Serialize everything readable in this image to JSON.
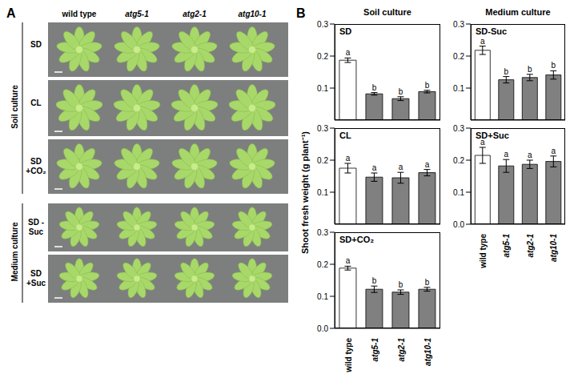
{
  "panel_a": {
    "label": "A",
    "columns": [
      "wild type",
      "atg5-1",
      "atg2-1",
      "atg10-1"
    ],
    "groups": [
      {
        "name": "Soil culture",
        "rows": [
          "SD",
          "CL",
          "SD +CO₂"
        ]
      },
      {
        "name": "Medium culture",
        "rows": [
          "SD -Suc",
          "SD +Suc"
        ]
      }
    ]
  },
  "panel_b": {
    "label": "B",
    "y_label": "Shoot fresh weight (g plant⁻¹)",
    "column_titles": [
      "Soil culture",
      "Medium culture"
    ]
  },
  "chart_data": [
    {
      "type": "bar",
      "title": "SD",
      "categories": [
        "wild type",
        "atg5-1",
        "atg2-1",
        "atg10-1"
      ],
      "values": [
        0.187,
        0.082,
        0.067,
        0.089
      ],
      "errors": [
        0.007,
        0.004,
        0.006,
        0.004
      ],
      "letters": [
        "a",
        "b",
        "b",
        "b"
      ],
      "colors": [
        "#ffffff",
        "#808080",
        "#808080",
        "#808080"
      ],
      "ylim": [
        0,
        0.3
      ],
      "yticks": [
        {
          "value": 0,
          "label": "0.0"
        },
        0.1,
        0.2,
        0.3
      ],
      "tick_labels": "y"
    },
    {
      "type": "bar",
      "title": "CL",
      "categories": [
        "wild type",
        "atg5-1",
        "atg2-1",
        "atg10-1"
      ],
      "values": [
        0.175,
        0.147,
        0.145,
        0.161
      ],
      "errors": [
        0.015,
        0.013,
        0.017,
        0.01
      ],
      "letters": [
        "a",
        "a",
        "a",
        "a"
      ],
      "colors": [
        "#ffffff",
        "#808080",
        "#808080",
        "#808080"
      ],
      "ylim": [
        0,
        0.3
      ],
      "yticks": [
        {
          "value": 0,
          "label": "0.0"
        },
        0.1,
        0.2,
        0.3
      ],
      "tick_labels": "y"
    },
    {
      "type": "bar",
      "title": "SD+CO₂",
      "categories": [
        "wild type",
        "atg5-1",
        "atg2-1",
        "atg10-1"
      ],
      "values": [
        0.188,
        0.122,
        0.113,
        0.122
      ],
      "errors": [
        0.006,
        0.01,
        0.007,
        0.006
      ],
      "letters": [
        "a",
        "b",
        "b",
        "b"
      ],
      "colors": [
        "#ffffff",
        "#808080",
        "#808080",
        "#808080"
      ],
      "ylim": [
        0,
        0.3
      ],
      "yticks": [
        {
          "value": 0,
          "label": "0.0"
        },
        0.1,
        0.2,
        0.3
      ]
    },
    {
      "type": "bar",
      "title": "SD-Suc",
      "categories": [
        "wild type",
        "atg5-1",
        "atg2-1",
        "atg10-1"
      ],
      "values": [
        0.218,
        0.126,
        0.133,
        0.141
      ],
      "errors": [
        0.013,
        0.01,
        0.01,
        0.013
      ],
      "letters": [
        "a",
        "b",
        "b",
        "b"
      ],
      "colors": [
        "#ffffff",
        "#808080",
        "#808080",
        "#808080"
      ],
      "ylim": [
        0,
        0.3
      ],
      "yticks": [
        {
          "value": 0,
          "label": "0.0"
        },
        0.1,
        0.2,
        0.3
      ],
      "tick_labels": "y"
    },
    {
      "type": "bar",
      "title": "SD+Suc",
      "categories": [
        "wild type",
        "atg5-1",
        "atg2-1",
        "atg10-1"
      ],
      "values": [
        0.215,
        0.182,
        0.187,
        0.196
      ],
      "errors": [
        0.025,
        0.02,
        0.013,
        0.017
      ],
      "letters": [
        "a",
        "a",
        "a",
        "a"
      ],
      "colors": [
        "#ffffff",
        "#808080",
        "#808080",
        "#808080"
      ],
      "ylim": [
        0,
        0.3
      ],
      "yticks": [
        {
          "value": 0,
          "label": "0.0"
        },
        0.1,
        0.2,
        0.3
      ]
    }
  ]
}
